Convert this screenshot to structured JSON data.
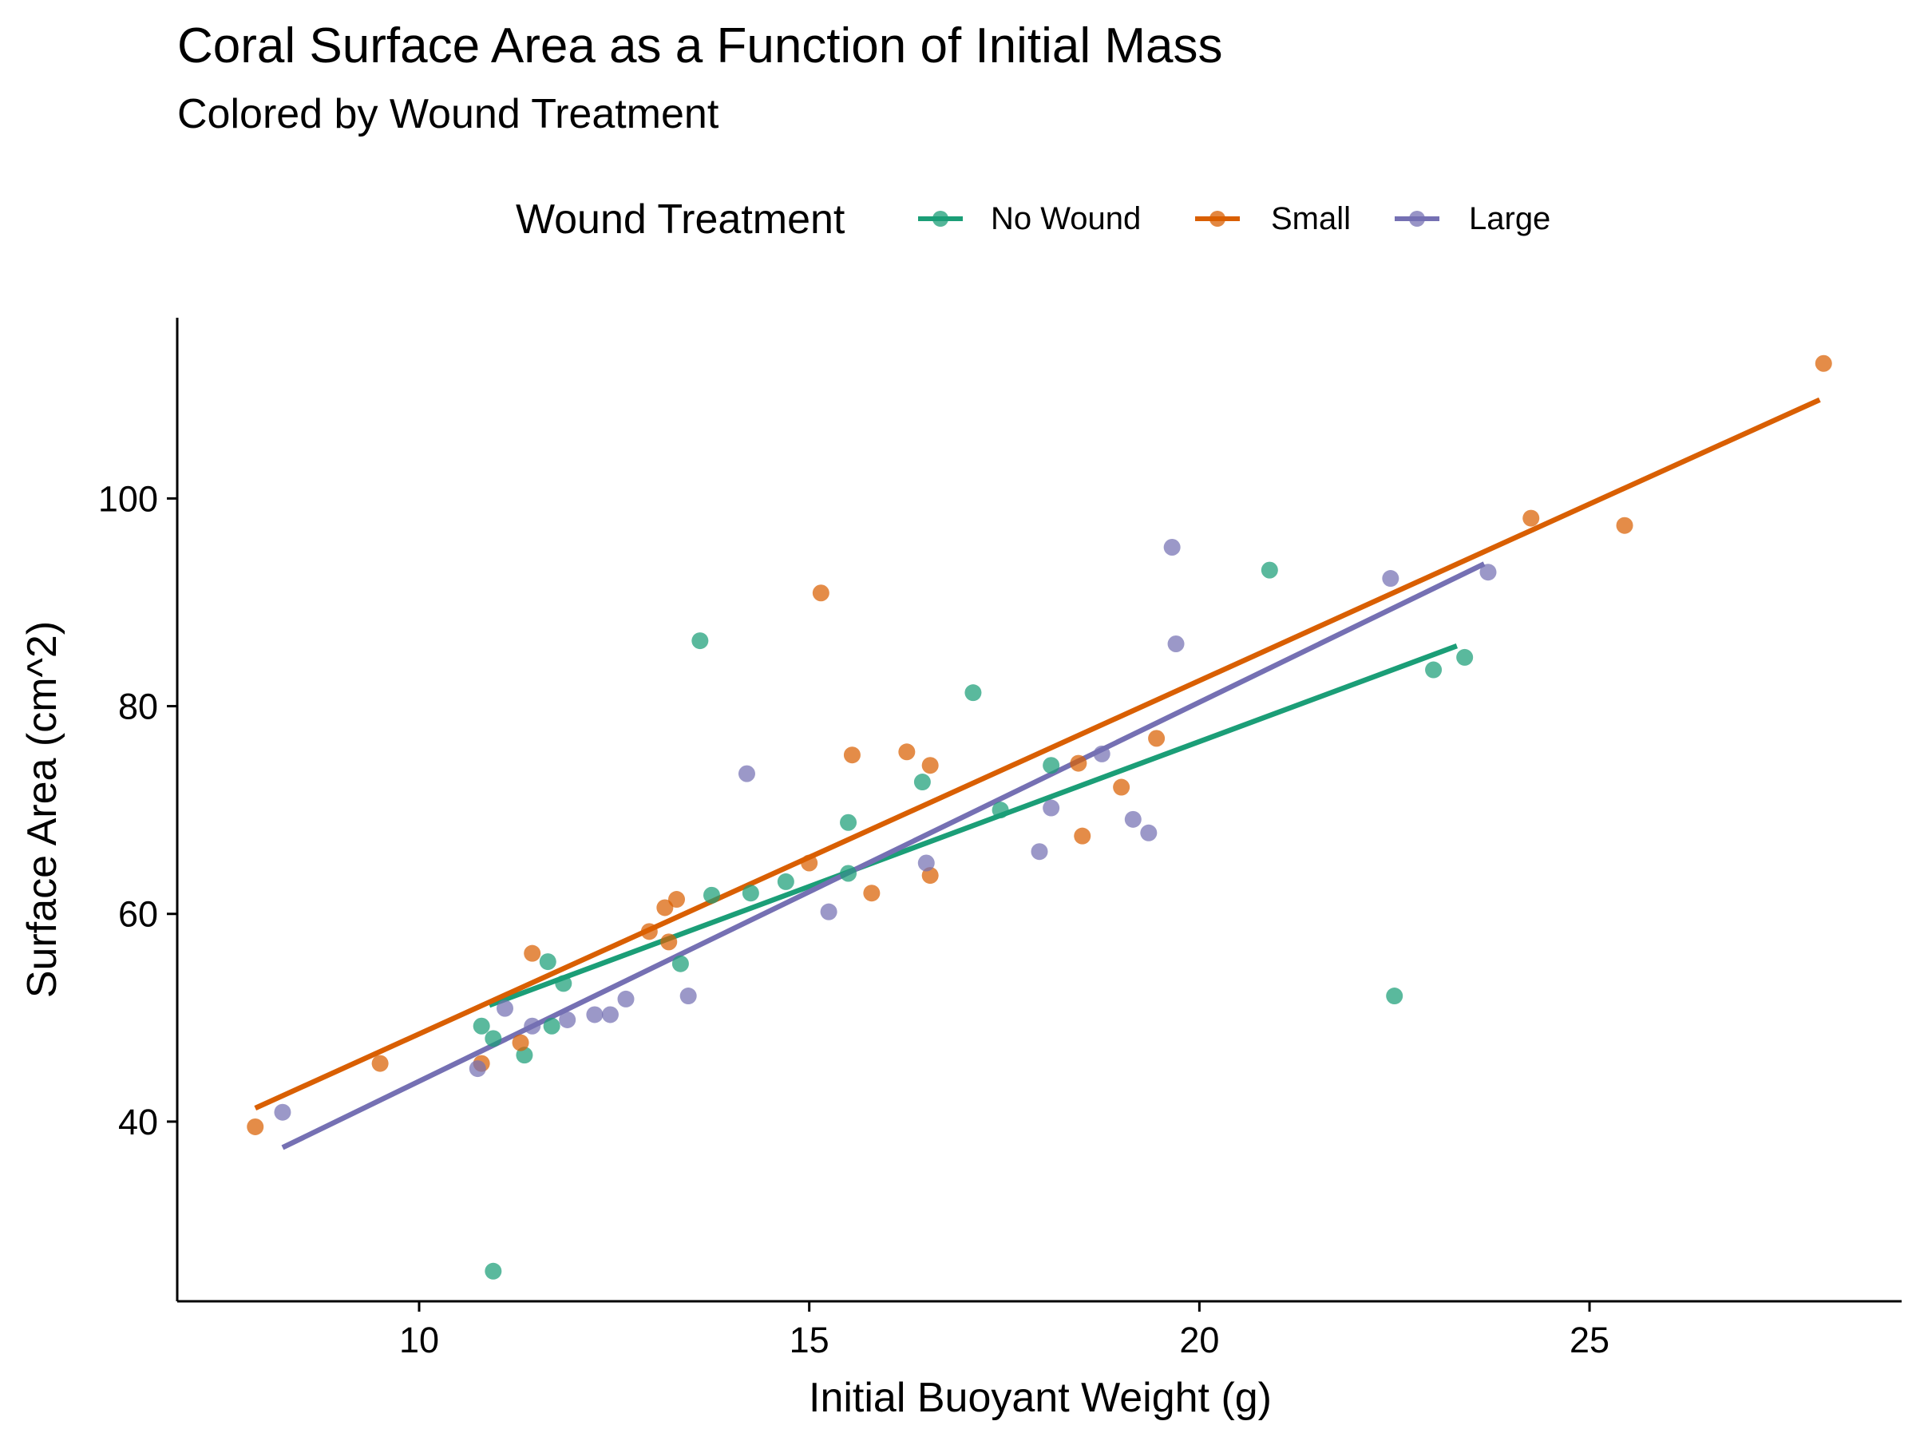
{
  "chart_data": {
    "type": "scatter",
    "title": "Coral Surface Area as a Function of Initial Mass",
    "subtitle": "Colored by Wound Treatment",
    "xlabel": "Initial Buoyant Weight (g)",
    "ylabel": "Surface Area (cm^2)",
    "xlim": [
      6.9,
      29.0
    ],
    "ylim": [
      22.7,
      117.4
    ],
    "x_ticks": [
      10,
      15,
      20,
      25
    ],
    "y_ticks": [
      40,
      60,
      80,
      100
    ],
    "grid": false,
    "legend": {
      "title": "Wound Treatment",
      "position": "top",
      "entries": [
        "No Wound",
        "Small",
        "Large"
      ]
    },
    "series": [
      {
        "name": "No Wound",
        "color": "#1B9E77",
        "points": [
          [
            10.8,
            49.2
          ],
          [
            10.95,
            48.0
          ],
          [
            10.95,
            25.6
          ],
          [
            11.35,
            46.4
          ],
          [
            11.65,
            55.4
          ],
          [
            11.7,
            49.2
          ],
          [
            11.85,
            53.3
          ],
          [
            13.35,
            55.2
          ],
          [
            13.6,
            86.3
          ],
          [
            13.75,
            61.8
          ],
          [
            14.25,
            62.0
          ],
          [
            14.7,
            63.1
          ],
          [
            15.5,
            68.8
          ],
          [
            15.5,
            63.9
          ],
          [
            16.45,
            72.7
          ],
          [
            17.1,
            81.3
          ],
          [
            17.45,
            70.0
          ],
          [
            18.1,
            74.3
          ],
          [
            20.9,
            93.1
          ],
          [
            22.5,
            52.1
          ],
          [
            23.0,
            83.5
          ],
          [
            23.4,
            84.7
          ]
        ],
        "fit": [
          [
            10.9,
            51.2
          ],
          [
            23.3,
            85.8
          ]
        ]
      },
      {
        "name": "Small",
        "color": "#D95F02",
        "points": [
          [
            7.9,
            39.5
          ],
          [
            9.5,
            45.6
          ],
          [
            10.8,
            45.6
          ],
          [
            11.3,
            47.6
          ],
          [
            11.45,
            56.2
          ],
          [
            12.95,
            58.3
          ],
          [
            13.15,
            60.6
          ],
          [
            13.2,
            57.3
          ],
          [
            13.3,
            61.4
          ],
          [
            15.0,
            64.9
          ],
          [
            15.15,
            90.9
          ],
          [
            15.55,
            75.3
          ],
          [
            15.8,
            62.0
          ],
          [
            16.25,
            75.6
          ],
          [
            16.55,
            74.3
          ],
          [
            16.55,
            63.7
          ],
          [
            18.45,
            74.5
          ],
          [
            18.5,
            67.5
          ],
          [
            19.0,
            72.2
          ],
          [
            19.45,
            76.9
          ],
          [
            24.25,
            98.1
          ],
          [
            25.45,
            97.4
          ],
          [
            28.0,
            113.0
          ]
        ],
        "fit": [
          [
            7.9,
            41.3
          ],
          [
            27.95,
            109.5
          ]
        ]
      },
      {
        "name": "Large",
        "color": "#7570B3",
        "points": [
          [
            8.25,
            40.9
          ],
          [
            10.75,
            45.1
          ],
          [
            11.1,
            50.9
          ],
          [
            11.45,
            49.2
          ],
          [
            11.9,
            49.8
          ],
          [
            12.25,
            50.3
          ],
          [
            12.45,
            50.3
          ],
          [
            12.65,
            51.8
          ],
          [
            13.45,
            52.1
          ],
          [
            14.2,
            73.5
          ],
          [
            15.25,
            60.2
          ],
          [
            16.5,
            64.9
          ],
          [
            17.95,
            66.0
          ],
          [
            18.1,
            70.2
          ],
          [
            18.75,
            75.4
          ],
          [
            19.15,
            69.1
          ],
          [
            19.35,
            67.8
          ],
          [
            19.65,
            95.3
          ],
          [
            19.7,
            86.0
          ],
          [
            22.45,
            92.3
          ],
          [
            23.7,
            92.9
          ]
        ],
        "fit": [
          [
            8.25,
            37.5
          ],
          [
            23.65,
            93.7
          ]
        ]
      }
    ]
  }
}
